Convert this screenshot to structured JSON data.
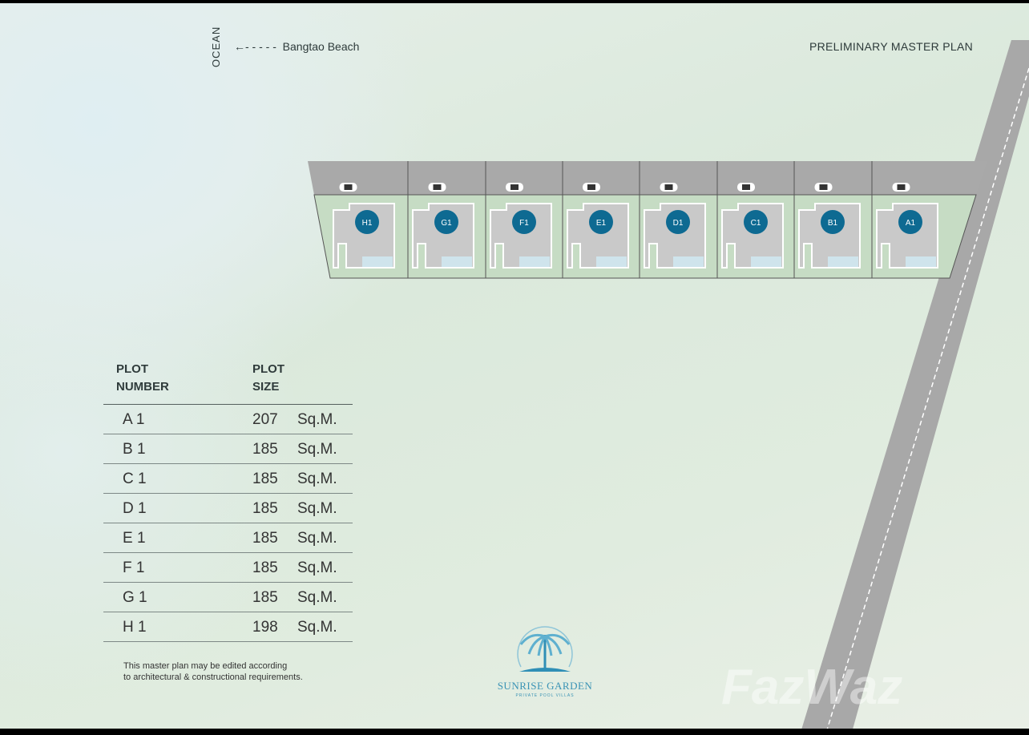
{
  "header": {
    "ocean_label": "OCEAN",
    "beach_label": "Bangtao Beach",
    "beach_arrow": "arrow-left-dashed",
    "title": "PRELIMINARY MASTER PLAN"
  },
  "plots": [
    {
      "id": "H1"
    },
    {
      "id": "G1"
    },
    {
      "id": "F1"
    },
    {
      "id": "E1"
    },
    {
      "id": "D1"
    },
    {
      "id": "C1"
    },
    {
      "id": "B1"
    },
    {
      "id": "A1"
    }
  ],
  "table": {
    "col1_header": [
      "PLOT",
      "NUMBER"
    ],
    "col2_header": [
      "PLOT",
      "SIZE"
    ],
    "rows": [
      {
        "plot": "A 1",
        "size": "207",
        "unit": "Sq.M."
      },
      {
        "plot": "B 1",
        "size": "185",
        "unit": "Sq.M."
      },
      {
        "plot": "C 1",
        "size": "185",
        "unit": "Sq.M."
      },
      {
        "plot": "D 1",
        "size": "185",
        "unit": "Sq.M."
      },
      {
        "plot": "E 1",
        "size": "185",
        "unit": "Sq.M."
      },
      {
        "plot": "F 1",
        "size": "185",
        "unit": "Sq.M."
      },
      {
        "plot": "G 1",
        "size": "185",
        "unit": "Sq.M."
      },
      {
        "plot": "H 1",
        "size": "198",
        "unit": "Sq.M."
      }
    ]
  },
  "note": [
    "This master plan may be edited according",
    "to architectural & constructional requirements."
  ],
  "logo": {
    "name": "SUNRISE GARDEN",
    "subtitle": "PRIVATE POOL VILLAS"
  },
  "watermark": "FazWaz",
  "colors": {
    "road": "#a9a9a9",
    "plot_green": "#c6dcc4",
    "badge": "#0e6a92",
    "pool": "#cfe4ec",
    "brand": "#3a93b5"
  }
}
